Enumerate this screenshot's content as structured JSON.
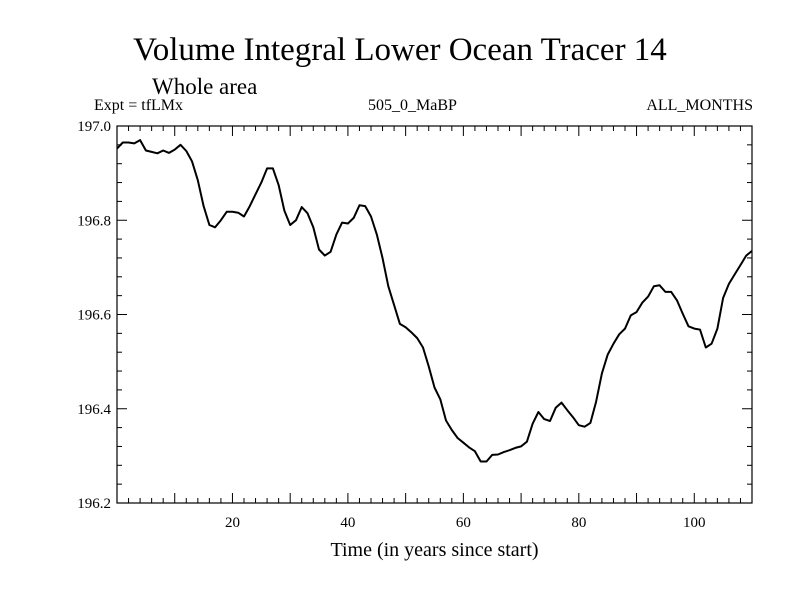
{
  "header": {
    "title": "Volume Integral Lower Ocean Tracer 14",
    "subtitle": "Whole area",
    "expt": "Expt = tfLMx",
    "run_id": "505_0_MaBP",
    "months": "ALL_MONTHS"
  },
  "chart_data": {
    "type": "line",
    "title": "Volume Integral Lower Ocean Tracer 14",
    "xlabel": "Time (in years since start)",
    "ylabel": "",
    "xlim": [
      0,
      110
    ],
    "ylim": [
      196.2,
      197.0
    ],
    "x_ticks": [
      20,
      40,
      60,
      80,
      100
    ],
    "y_ticks": [
      "196.2",
      "196.4",
      "196.6",
      "196.8",
      "197.0"
    ],
    "grid": false,
    "series": [
      {
        "name": "Tracer 14",
        "color": "#000000",
        "x": [
          0,
          1,
          2,
          3,
          4,
          5,
          6,
          7,
          8,
          9,
          10,
          11,
          12,
          13,
          14,
          15,
          16,
          17,
          18,
          19,
          20,
          21,
          22,
          23,
          24,
          25,
          26,
          27,
          28,
          29,
          30,
          31,
          32,
          33,
          34,
          35,
          36,
          37,
          38,
          39,
          40,
          41,
          42,
          43,
          44,
          45,
          46,
          47,
          48,
          49,
          50,
          51,
          52,
          53,
          54,
          55,
          56,
          57,
          58,
          59,
          60,
          61,
          62,
          63,
          64,
          65,
          66,
          67,
          68,
          69,
          70,
          71,
          72,
          73,
          74,
          75,
          76,
          77,
          78,
          79,
          80,
          81,
          82,
          83,
          84,
          85,
          86,
          87,
          88,
          89,
          90,
          91,
          92,
          93,
          94,
          95,
          96,
          97,
          98,
          99,
          100,
          101,
          102,
          103,
          104,
          105,
          106,
          107,
          108,
          109,
          110
        ],
        "values": [
          196.952,
          196.965,
          196.965,
          196.963,
          196.97,
          196.948,
          196.945,
          196.942,
          196.948,
          196.943,
          196.95,
          196.96,
          196.947,
          196.925,
          196.885,
          196.83,
          196.79,
          196.785,
          196.8,
          196.818,
          196.818,
          196.816,
          196.808,
          196.83,
          196.855,
          196.88,
          196.91,
          196.91,
          196.875,
          196.82,
          196.79,
          196.8,
          196.828,
          196.815,
          196.785,
          196.738,
          196.725,
          196.733,
          196.77,
          196.795,
          196.793,
          196.805,
          196.832,
          196.83,
          196.808,
          196.77,
          196.72,
          196.66,
          196.62,
          196.58,
          196.573,
          196.562,
          196.55,
          196.53,
          196.49,
          196.445,
          196.42,
          196.375,
          196.355,
          196.338,
          196.328,
          196.318,
          196.31,
          196.288,
          196.288,
          196.302,
          196.303,
          196.308,
          196.312,
          196.317,
          196.32,
          196.33,
          196.368,
          196.393,
          196.378,
          196.374,
          196.402,
          196.413,
          196.397,
          196.382,
          196.365,
          196.362,
          196.37,
          196.415,
          196.475,
          196.515,
          196.538,
          196.558,
          196.57,
          196.598,
          196.605,
          196.625,
          196.638,
          196.66,
          196.662,
          196.648,
          196.648,
          196.63,
          196.602,
          196.575,
          196.57,
          196.568,
          196.53,
          196.538,
          196.57,
          196.635,
          196.665,
          196.685,
          196.705,
          196.725,
          196.735
        ]
      }
    ]
  }
}
